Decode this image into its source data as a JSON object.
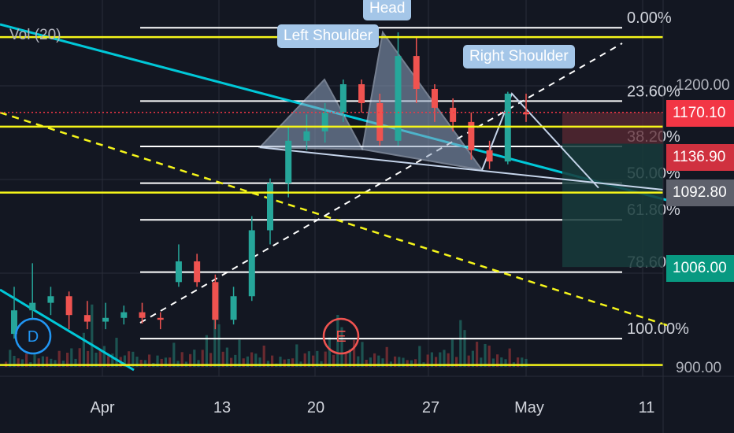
{
  "indicator": {
    "volume_label": "Vol (20)"
  },
  "colors": {
    "background": "#131722",
    "grid": "#2a2e39",
    "up": "#26a69a",
    "down": "#ef5350",
    "fib": "#ffffff",
    "yellow": "#f5f51a",
    "cyan": "#00c8d8",
    "pattern_fill": "#8fa3c0",
    "callout": "#a4c6e8",
    "price_red": "#f23645",
    "price_dark_red": "#d0313f",
    "price_gray": "#5d606b",
    "price_green": "#089981"
  },
  "callouts": {
    "left_shoulder": "Left Shoulder",
    "head": "Head",
    "right_shoulder": "Right Shoulder"
  },
  "events": {
    "dividend": "D",
    "earnings": "E"
  },
  "price_labels": [
    {
      "value": "1170.10",
      "color": "#f23645"
    },
    {
      "value": "1136.90",
      "color": "#d0313f"
    },
    {
      "value": "1092.80",
      "color": "#5d606b"
    },
    {
      "value": "1006.00",
      "color": "#089981"
    }
  ],
  "chart_data": {
    "type": "candlestick",
    "y_ticks": [
      "1200.00",
      "900.00"
    ],
    "x_ticks": [
      "Apr",
      "13",
      "20",
      "27",
      "May",
      "11"
    ],
    "fib_levels": [
      {
        "label": "0.00%",
        "ratio": 0.0
      },
      {
        "label": "23.60%",
        "ratio": 0.236
      },
      {
        "label": "38.20%",
        "ratio": 0.382
      },
      {
        "label": "50.00%",
        "ratio": 0.5
      },
      {
        "label": "61.80%",
        "ratio": 0.618
      },
      {
        "label": "78.60%",
        "ratio": 0.786
      },
      {
        "label": "100.00%",
        "ratio": 1.0
      }
    ],
    "fib_high": 1260,
    "fib_low": 930,
    "horizontal_lines": [
      1250,
      1168,
      1155,
      1085,
      902
    ],
    "pattern": {
      "left_shoulder": 1205,
      "head": 1255,
      "right_shoulder": 1190,
      "neckline": [
        1138,
        1131
      ]
    },
    "position": {
      "entry": 1136.9,
      "stop": 1170.1,
      "target": 1006.0
    },
    "candles": {
      "dates": [
        "Mar 23",
        "Mar 24",
        "Mar 25",
        "Mar 26",
        "Mar 27",
        "Mar 30",
        "Mar 31",
        "Apr 1",
        "Apr 2",
        "Apr 3",
        "Apr 6",
        "Apr 7",
        "Apr 8",
        "Apr 9",
        "Apr 13",
        "Apr 14",
        "Apr 15",
        "Apr 16",
        "Apr 17",
        "Apr 20",
        "Apr 21",
        "Apr 22",
        "Apr 23",
        "Apr 24",
        "Apr 27",
        "Apr 28",
        "Apr 29",
        "Apr 30",
        "May 1"
      ],
      "open": [
        935,
        960,
        968,
        975,
        955,
        948,
        952,
        958,
        952,
        990,
        1012,
        990,
        950,
        975,
        1045,
        1095,
        1140,
        1150,
        1170,
        1200,
        1180,
        1140,
        1230,
        1195,
        1175,
        1160,
        1130,
        1118,
        1170
      ],
      "close": [
        960,
        968,
        975,
        955,
        948,
        952,
        958,
        952,
        950,
        1012,
        990,
        950,
        975,
        1045,
        1095,
        1140,
        1150,
        1170,
        1200,
        1180,
        1140,
        1230,
        1195,
        1175,
        1160,
        1130,
        1118,
        1190,
        1168
      ],
      "high": [
        985,
        1010,
        985,
        980,
        970,
        968,
        965,
        968,
        958,
        1030,
        1020,
        998,
        985,
        1060,
        1100,
        1155,
        1168,
        1180,
        1205,
        1205,
        1190,
        1255,
        1250,
        1200,
        1185,
        1170,
        1140,
        1192,
        1190
      ],
      "low": [
        930,
        950,
        955,
        940,
        940,
        940,
        945,
        946,
        940,
        985,
        985,
        940,
        945,
        970,
        1030,
        1080,
        1130,
        1138,
        1160,
        1170,
        1135,
        1135,
        1180,
        1160,
        1150,
        1120,
        1110,
        1115,
        1160
      ]
    }
  }
}
